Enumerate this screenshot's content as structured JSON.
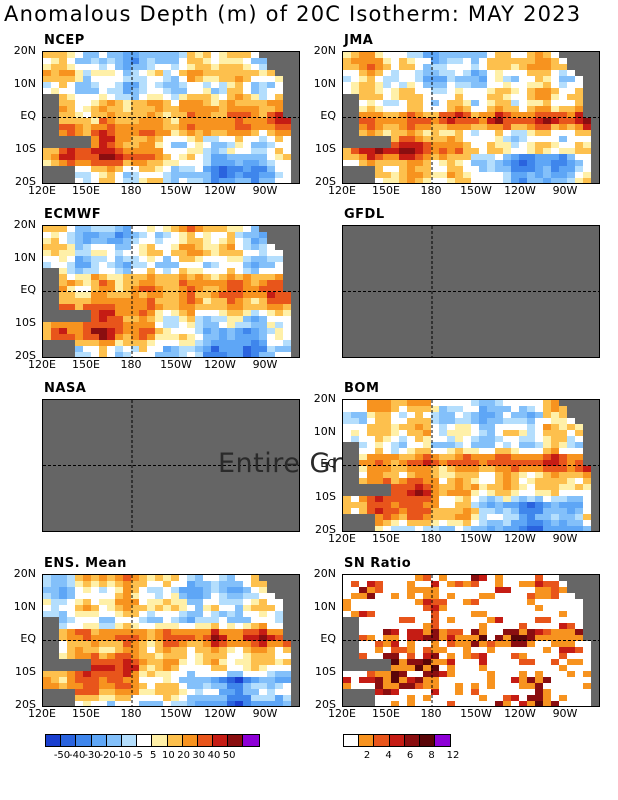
{
  "title": "Anomalous Depth (m) of 20C Isotherm: MAY 2023",
  "overlay_text": "Entire Gr",
  "y_labels": [
    "20N",
    "10N",
    "EQ",
    "10S",
    "20S"
  ],
  "x_labels": [
    "120E",
    "150E",
    "180",
    "150W",
    "120W",
    "90W"
  ],
  "panels": [
    {
      "name": "NCEP",
      "has_data": true,
      "seed": 11
    },
    {
      "name": "JMA",
      "has_data": true,
      "seed": 23
    },
    {
      "name": "ECMWF",
      "has_data": true,
      "seed": 37
    },
    {
      "name": "GFDL",
      "has_data": false,
      "seed": 0
    },
    {
      "name": "NASA",
      "has_data": false,
      "seed": 0
    },
    {
      "name": "BOM",
      "has_data": true,
      "seed": 53
    },
    {
      "name": "ENS. Mean",
      "has_data": true,
      "seed": 71
    },
    {
      "name": "SN Ratio",
      "has_data": true,
      "seed": 89,
      "sn": true
    }
  ],
  "colorbar_anom": {
    "colors": [
      "#1a3fcf",
      "#2a63de",
      "#3f86ec",
      "#5ea6f6",
      "#83c0fa",
      "#b4defd",
      "#ffffff",
      "#fff0a8",
      "#fdc04d",
      "#f7931f",
      "#e8551b",
      "#c51c14",
      "#8a0e10",
      "#8d00d6"
    ],
    "labels": [
      "-50",
      "-40",
      "-30",
      "-20",
      "-10",
      "-5",
      "5",
      "10",
      "20",
      "30",
      "40",
      "50"
    ]
  },
  "colorbar_sn": {
    "colors": [
      "#ffffff",
      "#f7931f",
      "#e8551b",
      "#c51c14",
      "#8a0e10",
      "#5a0508",
      "#8d00d6"
    ],
    "labels": [
      "2",
      "4",
      "6",
      "8",
      "12"
    ]
  },
  "colors": {
    "land": "#666666",
    "missing": "#656565"
  }
}
